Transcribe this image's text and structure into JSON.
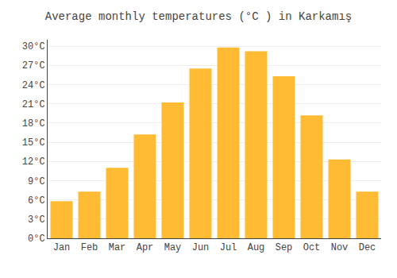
{
  "chart_data": {
    "type": "bar",
    "title": "Average monthly temperatures (°C ) in Karkamış",
    "categories": [
      "Jan",
      "Feb",
      "Mar",
      "Apr",
      "May",
      "Jun",
      "Jul",
      "Aug",
      "Sep",
      "Oct",
      "Nov",
      "Dec"
    ],
    "values": [
      5.8,
      7.3,
      11.0,
      16.2,
      21.2,
      26.5,
      29.8,
      29.2,
      25.3,
      19.2,
      12.3,
      7.3
    ],
    "color": "#FFBB33",
    "ylim": [
      0,
      31
    ],
    "yticks": [
      {
        "value": 0,
        "label": "0°C"
      },
      {
        "value": 3,
        "label": "3°C"
      },
      {
        "value": 6,
        "label": "6°C"
      },
      {
        "value": 9,
        "label": "9°C"
      },
      {
        "value": 12,
        "label": "12°C"
      },
      {
        "value": 15,
        "label": "15°C"
      },
      {
        "value": 18,
        "label": "18°C"
      },
      {
        "value": 21,
        "label": "21°C"
      },
      {
        "value": 24,
        "label": "24°C"
      },
      {
        "value": 27,
        "label": "27°C"
      },
      {
        "value": 30,
        "label": "30°C"
      }
    ],
    "grid": true
  }
}
